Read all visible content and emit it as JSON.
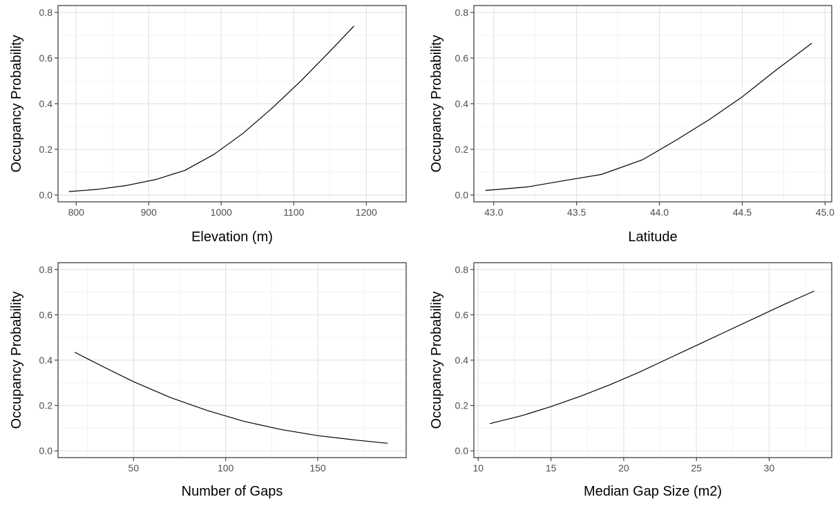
{
  "chart_data": [
    {
      "type": "line",
      "xlabel": "Elevation (m)",
      "ylabel": "Occupancy Probability",
      "xlim": [
        775,
        1255
      ],
      "ylim": [
        -0.03,
        0.83
      ],
      "x_ticks": [
        800,
        900,
        1000,
        1100,
        1200
      ],
      "x_tick_labels": [
        "800",
        "900",
        "1000",
        "1100",
        "1200"
      ],
      "y_ticks": [
        0.0,
        0.2,
        0.4,
        0.6,
        0.8
      ],
      "y_tick_labels": [
        "0.0",
        "0.2",
        "0.4",
        "0.6",
        "0.8"
      ],
      "grid": true,
      "series": [
        {
          "x": [
            790,
            830,
            870,
            910,
            950,
            990,
            1030,
            1070,
            1110,
            1150,
            1183
          ],
          "y": [
            0.015,
            0.025,
            0.042,
            0.068,
            0.108,
            0.178,
            0.27,
            0.38,
            0.5,
            0.63,
            0.74
          ]
        }
      ]
    },
    {
      "type": "line",
      "xlabel": "Latitude",
      "ylabel": "Occupancy Probability",
      "xlim": [
        42.88,
        45.04
      ],
      "ylim": [
        -0.03,
        0.83
      ],
      "x_ticks": [
        43.0,
        43.5,
        44.0,
        44.5,
        45.0
      ],
      "x_tick_labels": [
        "43.0",
        "43.5",
        "44.0",
        "44.5",
        "45.0"
      ],
      "y_ticks": [
        0.0,
        0.2,
        0.4,
        0.6,
        0.8
      ],
      "y_tick_labels": [
        "0.0",
        "0.2",
        "0.4",
        "0.6",
        "0.8"
      ],
      "grid": true,
      "series": [
        {
          "x": [
            42.95,
            43.2,
            43.4,
            43.65,
            43.9,
            44.1,
            44.3,
            44.5,
            44.7,
            44.92
          ],
          "y": [
            0.02,
            0.035,
            0.06,
            0.09,
            0.155,
            0.24,
            0.33,
            0.43,
            0.545,
            0.665
          ]
        }
      ]
    },
    {
      "type": "line",
      "xlabel": "Number of Gaps",
      "ylabel": "Occupancy Probability",
      "xlim": [
        9,
        198
      ],
      "ylim": [
        -0.03,
        0.83
      ],
      "x_ticks": [
        50,
        100,
        150
      ],
      "x_tick_labels": [
        "50",
        "100",
        "150"
      ],
      "y_ticks": [
        0.0,
        0.2,
        0.4,
        0.6,
        0.8
      ],
      "y_tick_labels": [
        "0.0",
        "0.2",
        "0.4",
        "0.6",
        "0.8"
      ],
      "grid": true,
      "series": [
        {
          "x": [
            18,
            35,
            50,
            70,
            90,
            110,
            130,
            150,
            170,
            188
          ],
          "y": [
            0.435,
            0.365,
            0.305,
            0.235,
            0.178,
            0.13,
            0.094,
            0.067,
            0.048,
            0.033
          ]
        }
      ]
    },
    {
      "type": "line",
      "xlabel": "Median Gap Size (m2)",
      "ylabel": "Occupancy Probability",
      "xlim": [
        9.7,
        34.3
      ],
      "ylim": [
        -0.03,
        0.83
      ],
      "x_ticks": [
        10,
        15,
        20,
        25,
        30
      ],
      "x_tick_labels": [
        "10",
        "15",
        "20",
        "25",
        "30"
      ],
      "y_ticks": [
        0.0,
        0.2,
        0.4,
        0.6,
        0.8
      ],
      "y_tick_labels": [
        "0.0",
        "0.2",
        "0.4",
        "0.6",
        "0.8"
      ],
      "grid": true,
      "series": [
        {
          "x": [
            10.8,
            13,
            15,
            17,
            19,
            21,
            23,
            25,
            27,
            29,
            31,
            33.1
          ],
          "y": [
            0.12,
            0.155,
            0.195,
            0.24,
            0.29,
            0.345,
            0.405,
            0.465,
            0.525,
            0.585,
            0.645,
            0.705
          ]
        }
      ]
    }
  ]
}
